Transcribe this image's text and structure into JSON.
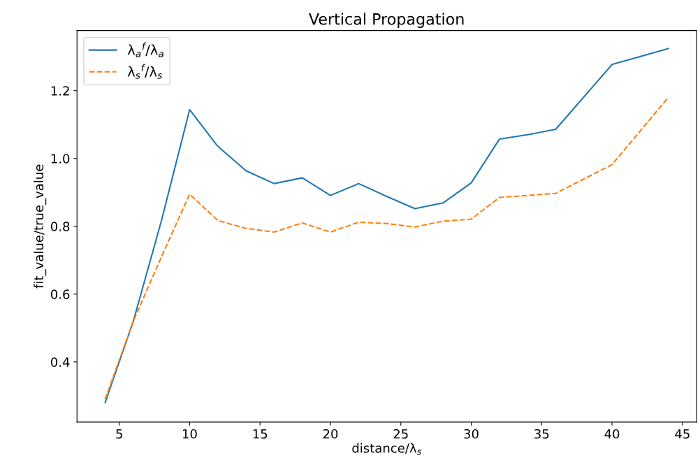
{
  "chart_data": {
    "type": "line",
    "title": "Vertical Propagation",
    "xlabel": "distance/λ$_{s}$",
    "ylabel": "fit_value/true_value",
    "x": [
      4,
      6,
      8,
      10,
      12,
      14,
      16,
      18,
      20,
      22,
      24,
      26,
      28,
      30,
      32,
      34,
      36,
      40,
      44
    ],
    "series": [
      {
        "name": "λ$_{a}$$^{f}$/λ$_{a}$",
        "color": "#1f77b4",
        "line_style": "solid",
        "values": [
          0.28,
          0.52,
          0.817,
          1.144,
          1.036,
          0.964,
          0.926,
          0.943,
          0.891,
          0.926,
          0.888,
          0.852,
          0.869,
          0.928,
          1.057,
          1.07,
          1.086,
          1.277,
          1.324
        ]
      },
      {
        "name": "λ$_{s}$$^{f}$/λ$_{s}$",
        "color": "#ff7f0e",
        "line_style": "dashed",
        "values": [
          0.29,
          0.52,
          0.71,
          0.895,
          0.817,
          0.794,
          0.783,
          0.81,
          0.783,
          0.812,
          0.808,
          0.798,
          0.815,
          0.821,
          0.885,
          0.891,
          0.897,
          0.982,
          1.18
        ]
      }
    ],
    "xlim": [
      2,
      46
    ],
    "xticks": [
      5,
      10,
      15,
      20,
      25,
      30,
      35,
      40,
      45
    ],
    "ylim": [
      0.2225,
      1.3775
    ],
    "yticks": [
      0.4,
      0.6,
      0.8,
      {
        "value": 1.0,
        "label": "1.0"
      },
      1.2
    ],
    "grid": false,
    "legend": "top left",
    "marker": "none"
  }
}
